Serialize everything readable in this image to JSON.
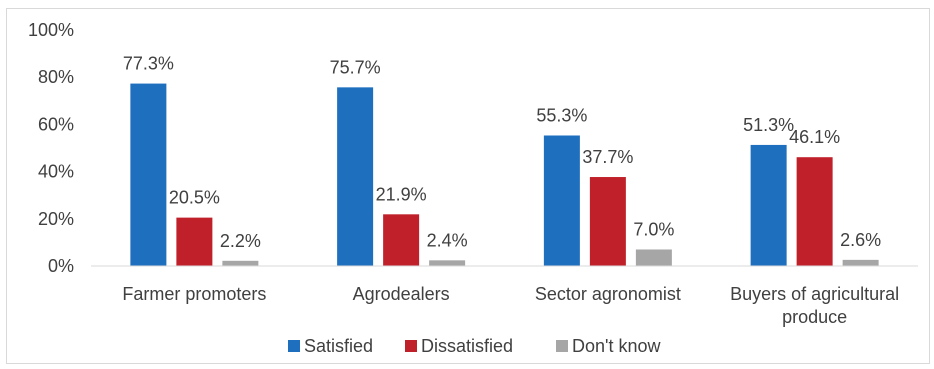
{
  "chart_data": {
    "type": "bar",
    "categories": [
      "Farmer promoters",
      "Agrodealers",
      "Sector agronomist",
      "Buyers of agricultural produce"
    ],
    "category_lines": [
      [
        "Farmer promoters"
      ],
      [
        "Agrodealers"
      ],
      [
        "Sector agronomist"
      ],
      [
        "Buyers of agricultural",
        "produce"
      ]
    ],
    "series": [
      {
        "name": "Satisfied",
        "color": "#1f6fbf",
        "values": [
          77.3,
          75.7,
          55.3,
          51.3
        ],
        "labels": [
          "77.3%",
          "75.7%",
          "55.3%",
          "51.3%"
        ]
      },
      {
        "name": "Dissatisfied",
        "color": "#c0202a",
        "values": [
          20.5,
          21.9,
          37.7,
          46.1
        ],
        "labels": [
          "20.5%",
          "21.9%",
          "37.7%",
          "46.1%"
        ]
      },
      {
        "name": "Don't know",
        "color": "#a6a6a6",
        "values": [
          2.2,
          2.4,
          7.0,
          2.6
        ],
        "labels": [
          "2.2%",
          "2.4%",
          "7.0%",
          "2.6%"
        ]
      }
    ],
    "y_ticks": [
      {
        "value": 0,
        "label": "0%"
      },
      {
        "value": 20,
        "label": "20%"
      },
      {
        "value": 40,
        "label": "40%"
      },
      {
        "value": 60,
        "label": "60%"
      },
      {
        "value": 80,
        "label": "80%"
      },
      {
        "value": 100,
        "label": "100%"
      }
    ],
    "ylim": [
      0,
      100
    ],
    "title": "",
    "xlabel": "",
    "ylabel": "",
    "grid": false,
    "legend_position": "bottom"
  }
}
